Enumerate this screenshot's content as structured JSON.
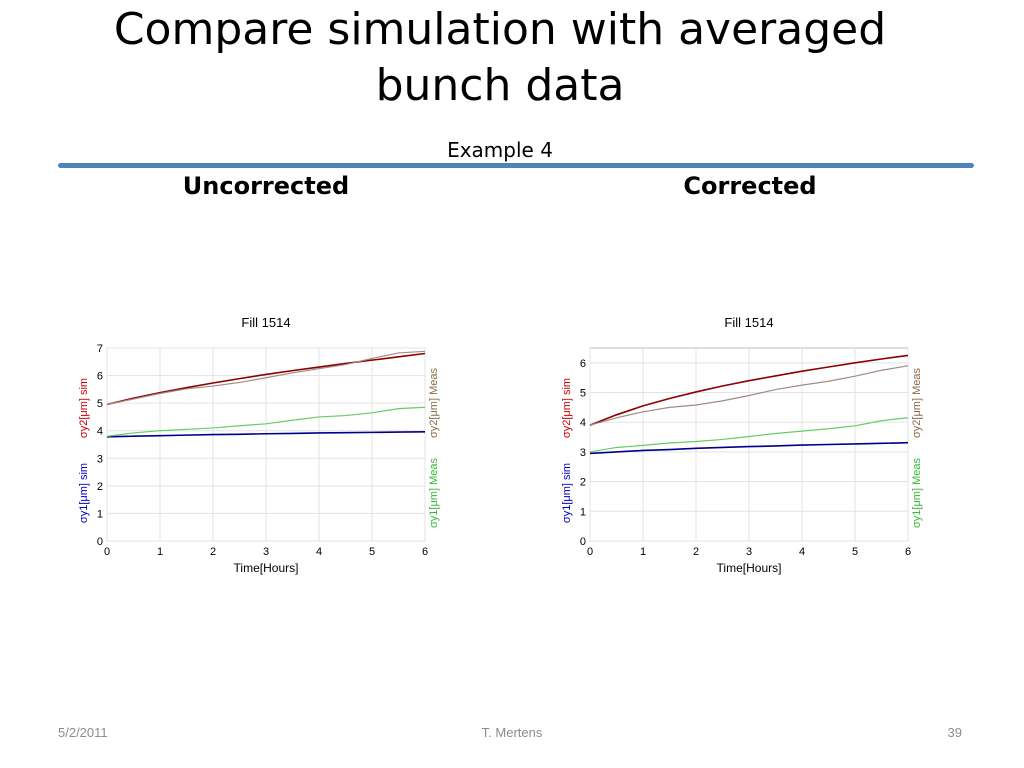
{
  "slide": {
    "title_line1": "Compare simulation with averaged",
    "title_line2": "bunch data",
    "subtitle": "Example 4",
    "left_heading": "Uncorrected",
    "right_heading": "Corrected"
  },
  "footer": {
    "date": "5/2/2011",
    "author": "T. Mertens",
    "page": "39"
  },
  "colors": {
    "sim_y2": "#8b0000",
    "meas_y2": "#a08c84",
    "sim_y1": "#00008b",
    "meas_y1": "#66cc66",
    "axis_left_y2": "#cc0000",
    "axis_left_y1": "#0000cc",
    "axis_right_y2": "#8b6a4a",
    "axis_right_y1": "#33bb33"
  },
  "chart_data": [
    {
      "type": "line",
      "title": "Fill 1514",
      "xlabel": "Time[Hours]",
      "ylabel_left_y2": "σy2[μm] sim",
      "ylabel_left_y1": "σy1[μm] sim",
      "ylabel_right_y2": "σy2[μm] Meas",
      "ylabel_right_y1": "σy1[μm] Meas",
      "xlim": [
        0,
        6
      ],
      "ylim": [
        0,
        7
      ],
      "xticks": [
        "0",
        "1",
        "2",
        "3",
        "4",
        "5",
        "6"
      ],
      "yticks": [
        "0",
        "1",
        "2",
        "3",
        "4",
        "5",
        "6",
        "7"
      ],
      "grid": true,
      "x": [
        0,
        0.5,
        1,
        1.5,
        2,
        2.5,
        3,
        3.5,
        4,
        4.5,
        5,
        5.5,
        6
      ],
      "series": [
        {
          "role": "sim_y2",
          "values": [
            4.95,
            5.18,
            5.38,
            5.56,
            5.73,
            5.89,
            6.04,
            6.18,
            6.31,
            6.44,
            6.56,
            6.68,
            6.8
          ]
        },
        {
          "role": "meas_y2",
          "values": [
            4.95,
            5.15,
            5.35,
            5.52,
            5.62,
            5.75,
            5.92,
            6.1,
            6.25,
            6.4,
            6.62,
            6.82,
            6.88
          ]
        },
        {
          "role": "sim_y1",
          "values": [
            3.78,
            3.8,
            3.82,
            3.84,
            3.86,
            3.87,
            3.89,
            3.9,
            3.92,
            3.93,
            3.94,
            3.95,
            3.96
          ]
        },
        {
          "role": "meas_y1",
          "values": [
            3.8,
            3.92,
            4.0,
            4.05,
            4.1,
            4.18,
            4.25,
            4.38,
            4.5,
            4.55,
            4.65,
            4.8,
            4.85
          ]
        }
      ]
    },
    {
      "type": "line",
      "title": "Fill 1514",
      "xlabel": "Time[Hours]",
      "ylabel_left_y2": "σy2[μm] sim",
      "ylabel_left_y1": "σy1[μm] sim",
      "ylabel_right_y2": "σy2[μm] Meas",
      "ylabel_right_y1": "σy1[μm] Meas",
      "xlim": [
        0,
        6
      ],
      "ylim": [
        0,
        6.5
      ],
      "xticks": [
        "0",
        "1",
        "2",
        "3",
        "4",
        "5",
        "6"
      ],
      "yticks": [
        "0",
        "1",
        "2",
        "3",
        "4",
        "5",
        "6"
      ],
      "grid": true,
      "x": [
        0,
        0.5,
        1,
        1.5,
        2,
        2.5,
        3,
        3.5,
        4,
        4.5,
        5,
        5.5,
        6
      ],
      "series": [
        {
          "role": "sim_y2",
          "values": [
            3.9,
            4.25,
            4.55,
            4.8,
            5.02,
            5.22,
            5.4,
            5.56,
            5.72,
            5.86,
            6.0,
            6.13,
            6.25
          ]
        },
        {
          "role": "meas_y2",
          "values": [
            3.9,
            4.15,
            4.35,
            4.5,
            4.58,
            4.72,
            4.9,
            5.1,
            5.25,
            5.38,
            5.55,
            5.75,
            5.9
          ]
        },
        {
          "role": "sim_y1",
          "values": [
            2.95,
            3.0,
            3.05,
            3.08,
            3.12,
            3.15,
            3.18,
            3.2,
            3.23,
            3.25,
            3.27,
            3.29,
            3.31
          ]
        },
        {
          "role": "meas_y1",
          "values": [
            3.0,
            3.15,
            3.22,
            3.3,
            3.35,
            3.42,
            3.52,
            3.62,
            3.7,
            3.78,
            3.88,
            4.05,
            4.15
          ]
        }
      ]
    }
  ]
}
